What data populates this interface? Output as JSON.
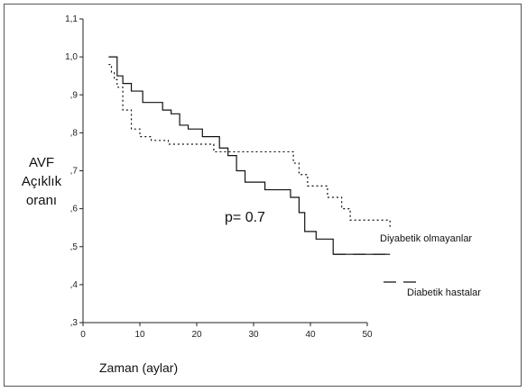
{
  "chart_data": {
    "type": "line",
    "title": "",
    "ylabel_lines": [
      "AVF",
      "Açıklık",
      "oranı"
    ],
    "xlabel": "Zaman (aylar)",
    "xlim": [
      0,
      50
    ],
    "ylim": [
      0.3,
      1.1
    ],
    "x_ticks": [
      0,
      10,
      20,
      30,
      40,
      50
    ],
    "x_tick_labels": [
      "0",
      "10",
      "20",
      "30",
      "40",
      "50"
    ],
    "y_ticks": [
      0.3,
      0.4,
      0.5,
      0.6,
      0.7,
      0.8,
      0.9,
      1.0,
      1.1
    ],
    "y_tick_labels": [
      ",3",
      ",4",
      ",5",
      ",6",
      ",7",
      ",8",
      ",9",
      "1,0",
      "1,1"
    ],
    "grid": false,
    "annotation": "p= 0.7",
    "series": [
      {
        "name": "Diyabetik olmayanlar",
        "style": "dotted",
        "color": "#111111",
        "x": [
          4.5,
          5.0,
          5.5,
          6.0,
          7.0,
          8.5,
          10.0,
          12.0,
          15.0,
          23.0,
          37.0,
          38.0,
          39.5,
          43.0,
          45.5,
          47.0,
          54.0
        ],
        "y": [
          0.98,
          0.96,
          0.94,
          0.92,
          0.86,
          0.81,
          0.79,
          0.78,
          0.77,
          0.75,
          0.72,
          0.69,
          0.66,
          0.63,
          0.6,
          0.57,
          0.55
        ]
      },
      {
        "name": "Diabetik hastalar",
        "style": "dashed",
        "color": "#111111",
        "x": [
          4.5,
          6.0,
          7.0,
          8.5,
          10.5,
          14.0,
          15.5,
          17.0,
          18.5,
          21.0,
          24.0,
          25.5,
          27.0,
          28.5,
          32.0,
          36.5,
          38.0,
          39.0,
          41.0,
          44.0,
          54.0
        ],
        "y": [
          1.0,
          0.95,
          0.93,
          0.91,
          0.88,
          0.86,
          0.85,
          0.82,
          0.81,
          0.79,
          0.76,
          0.74,
          0.7,
          0.67,
          0.65,
          0.63,
          0.59,
          0.54,
          0.52,
          0.48,
          0.48
        ]
      }
    ],
    "legend_segments": [
      {
        "name": "Diabetik hastalar",
        "style": "dashed"
      }
    ]
  }
}
